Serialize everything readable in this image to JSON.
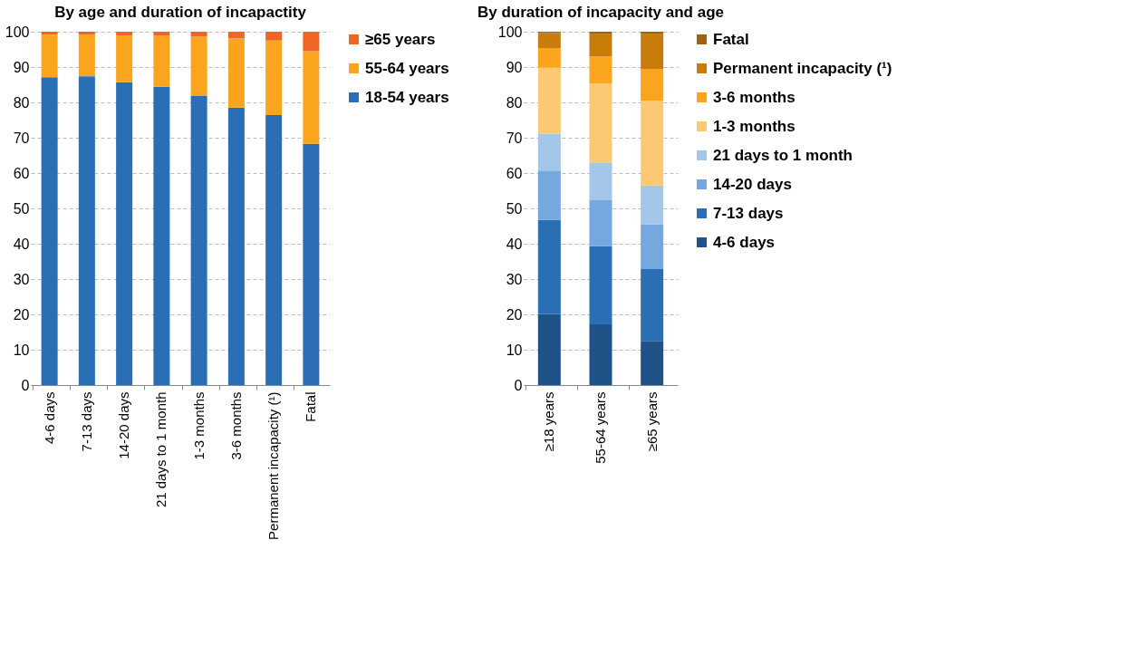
{
  "chart_data": [
    {
      "type": "bar",
      "title": "By age and duration of incapactity",
      "stacked": true,
      "legend": "right",
      "grid": "y",
      "categories": [
        "4-6 days",
        "7-13 days",
        "14-20 days",
        "21 days to 1 month",
        "1-3 months",
        "3-6 months",
        "Permanent incapacity (¹)",
        "Fatal"
      ],
      "ylim": [
        0,
        100
      ],
      "yticks": [
        0,
        10,
        20,
        30,
        40,
        50,
        60,
        70,
        80,
        90,
        100
      ],
      "series": [
        {
          "name": "18-54 years",
          "color": "#2a6eb4",
          "values": [
            87.1,
            87.4,
            85.7,
            84.4,
            81.8,
            78.5,
            76.4,
            68.3
          ]
        },
        {
          "name": "55-64 years",
          "color": "#faa51d",
          "values": [
            12.1,
            11.8,
            13.2,
            14.5,
            16.8,
            19.6,
            21.1,
            26.2
          ]
        },
        {
          "name": "≥65 years",
          "color": "#f06524",
          "values": [
            0.8,
            0.8,
            1.1,
            1.1,
            1.4,
            1.9,
            2.5,
            5.5
          ]
        }
      ]
    },
    {
      "type": "bar",
      "title": "By duration of incapacity and age",
      "stacked": true,
      "legend": "right",
      "grid": "y",
      "categories": [
        "≥18 years",
        "55-64 years",
        "≥65 years"
      ],
      "ylim": [
        0,
        100
      ],
      "yticks": [
        0,
        10,
        20,
        30,
        40,
        50,
        60,
        70,
        80,
        90,
        100
      ],
      "series": [
        {
          "name": "4-6 days",
          "color": "#1f5287",
          "values": [
            20.1,
            17.2,
            12.5
          ]
        },
        {
          "name": "7-13 days",
          "color": "#2a6eb4",
          "values": [
            26.6,
            22.1,
            20.3
          ]
        },
        {
          "name": "14-20 days",
          "color": "#74a8de",
          "values": [
            14.0,
            13.0,
            12.7
          ]
        },
        {
          "name": "21 days to 1 month",
          "color": "#a3c6e9",
          "values": [
            10.4,
            10.7,
            11.0
          ]
        },
        {
          "name": "1-3 months",
          "color": "#fbc974",
          "values": [
            18.7,
            22.4,
            24.0
          ]
        },
        {
          "name": "3-6 months",
          "color": "#faa51d",
          "values": [
            5.6,
            7.6,
            9.0
          ]
        },
        {
          "name": "Permanent incapacity (¹)",
          "color": "#c87d0b",
          "values": [
            4.2,
            6.3,
            9.8
          ]
        },
        {
          "name": "Fatal",
          "color": "#9c6413",
          "values": [
            0.4,
            0.7,
            0.7
          ]
        }
      ]
    }
  ]
}
